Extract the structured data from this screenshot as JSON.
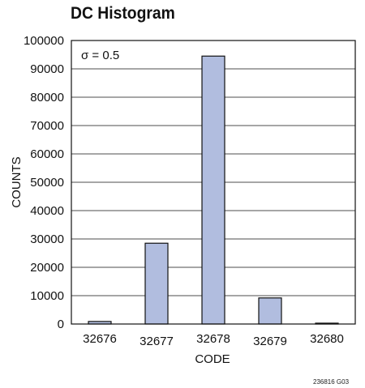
{
  "chart_data": {
    "type": "bar",
    "title": "DC Histogram",
    "annotation": "σ = 0.5",
    "xlabel": "CODE",
    "ylabel": "COUNTS",
    "categories": [
      "32676",
      "32677",
      "32678",
      "32679",
      "32680"
    ],
    "values": [
      900,
      28500,
      94500,
      9200,
      300
    ],
    "ylim": [
      0,
      100000
    ],
    "yticks": [
      0,
      10000,
      20000,
      30000,
      40000,
      50000,
      60000,
      70000,
      80000,
      90000,
      100000
    ],
    "grid": true,
    "bar_color": "#b1bddf"
  },
  "figure_id": "236816 G03"
}
